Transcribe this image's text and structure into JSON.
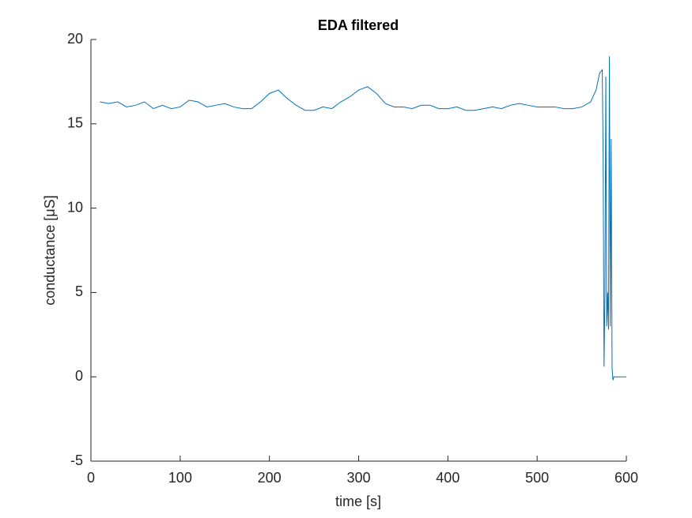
{
  "chart_data": {
    "type": "line",
    "title": "EDA filtered",
    "x_label": "time [s]",
    "y_label": "conductance [μS]",
    "x": [
      10,
      20,
      30,
      40,
      50,
      60,
      70,
      80,
      90,
      100,
      110,
      120,
      130,
      140,
      150,
      160,
      170,
      180,
      190,
      200,
      210,
      220,
      230,
      240,
      250,
      260,
      270,
      280,
      290,
      300,
      310,
      320,
      330,
      340,
      350,
      360,
      370,
      380,
      390,
      400,
      410,
      420,
      430,
      440,
      450,
      460,
      470,
      480,
      490,
      500,
      510,
      520,
      530,
      540,
      550,
      560,
      566,
      570,
      573,
      574,
      575,
      576,
      577,
      578,
      579,
      580,
      581,
      582,
      583,
      584,
      585,
      586,
      600
    ],
    "values": [
      16.3,
      16.2,
      16.3,
      16.0,
      16.1,
      16.3,
      15.9,
      16.1,
      15.9,
      16.0,
      16.4,
      16.3,
      16.0,
      16.1,
      16.2,
      16.0,
      15.9,
      15.9,
      16.3,
      16.8,
      17.0,
      16.5,
      16.1,
      15.8,
      15.8,
      16.0,
      15.9,
      16.3,
      16.6,
      17.0,
      17.2,
      16.8,
      16.2,
      16.0,
      16.0,
      15.9,
      16.1,
      16.1,
      15.9,
      15.9,
      16.0,
      15.8,
      15.8,
      15.9,
      16.0,
      15.9,
      16.1,
      16.2,
      16.1,
      16.0,
      16.0,
      16.0,
      15.9,
      15.9,
      16.0,
      16.3,
      17.0,
      18.0,
      18.2,
      13,
      0.6,
      5,
      17.8,
      3,
      5,
      2.8,
      19.0,
      3,
      14.1,
      0.5,
      -0.2,
      0,
      0
    ],
    "color": "#0072bd",
    "xlim": [
      0,
      600
    ],
    "xticks": [
      0,
      100,
      200,
      300,
      400,
      500,
      600
    ],
    "ylim": [
      -5,
      20
    ],
    "yticks": [
      -5,
      0,
      5,
      10,
      15,
      20
    ]
  }
}
